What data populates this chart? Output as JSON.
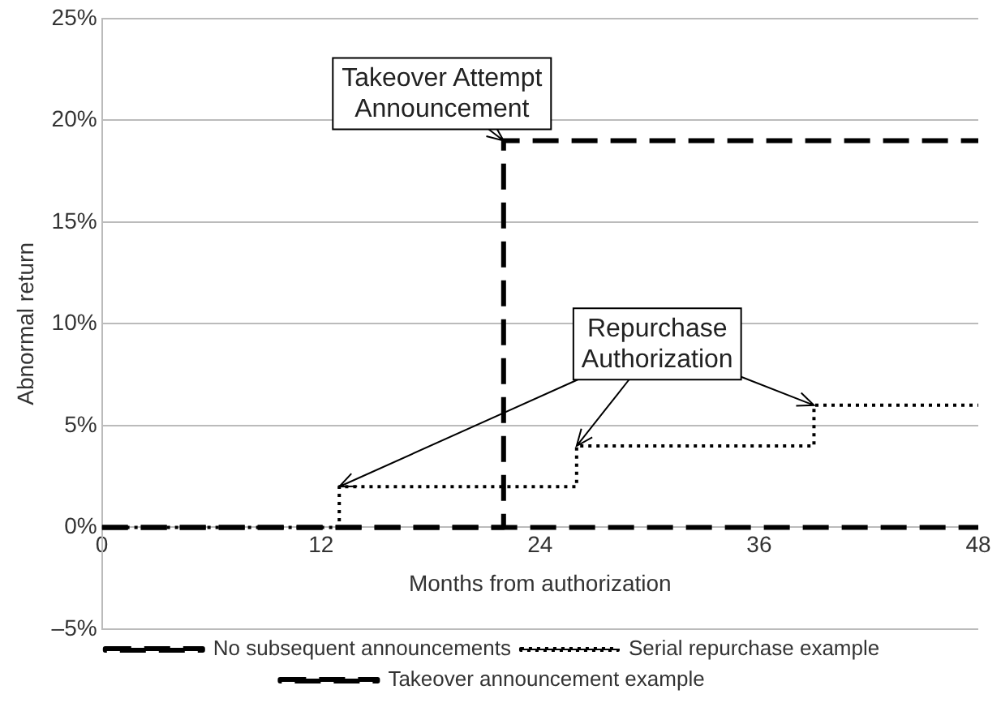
{
  "chart_data": {
    "type": "step",
    "xlabel": "Months from authorization",
    "ylabel": "Abnormal return",
    "xlim": [
      0,
      48
    ],
    "xticks": [
      0,
      12,
      24,
      36,
      48
    ],
    "ylim": [
      -5,
      25
    ],
    "yticks": [
      {
        "value": -5,
        "label": "–5%"
      },
      {
        "value": 0,
        "label": "0%"
      },
      {
        "value": 5,
        "label": "5%"
      },
      {
        "value": 10,
        "label": "10%"
      },
      {
        "value": 15,
        "label": "15%"
      },
      {
        "value": 20,
        "label": "20%"
      },
      {
        "value": 25,
        "label": "25%"
      }
    ],
    "grid": "y",
    "legend": "bottom",
    "series": [
      {
        "name": "No subsequent announcements",
        "color": "#000000",
        "line_style": "dashed",
        "x": [
          0,
          48
        ],
        "values": [
          0,
          0
        ]
      },
      {
        "name": "Serial repurchase example",
        "color": "#000000",
        "line_style": "dotted",
        "x": [
          0,
          13,
          26,
          39,
          48
        ],
        "values": [
          0,
          2,
          4,
          6,
          6
        ]
      },
      {
        "name": "Takeover announcement example",
        "color": "#000000",
        "line_style": "dashed",
        "x": [
          0,
          22,
          48
        ],
        "values": [
          0,
          19,
          19
        ]
      }
    ],
    "annotations": [
      {
        "text": "Takeover Attempt Announcement",
        "x": 22,
        "y": 19
      },
      {
        "text": "Repurchase Authorization",
        "x": 13,
        "y": 2
      }
    ]
  }
}
